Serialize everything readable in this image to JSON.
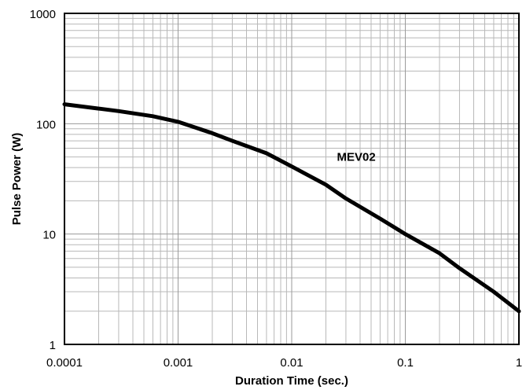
{
  "chart_data": {
    "type": "line",
    "title": "",
    "xlabel": "Duration Time (sec.)",
    "ylabel": "Pulse Power (W)",
    "x_scale": "log",
    "y_scale": "log",
    "xlim": [
      0.0001,
      1
    ],
    "ylim": [
      1,
      1000
    ],
    "grid": true,
    "x_ticks": [
      {
        "value": 0.0001,
        "label": "0.0001"
      },
      {
        "value": 0.001,
        "label": "0.001"
      },
      {
        "value": 0.01,
        "label": "0.01"
      },
      {
        "value": 0.1,
        "label": "0.1"
      },
      {
        "value": 1,
        "label": "1"
      }
    ],
    "y_ticks": [
      {
        "value": 1,
        "label": "1"
      },
      {
        "value": 10,
        "label": "10"
      },
      {
        "value": 100,
        "label": "100"
      },
      {
        "value": 1000,
        "label": "1000"
      }
    ],
    "series": [
      {
        "name": "MEV02",
        "x": [
          0.0001,
          0.0002,
          0.0003,
          0.0006,
          0.001,
          0.002,
          0.003,
          0.006,
          0.01,
          0.02,
          0.03,
          0.06,
          0.1,
          0.2,
          0.3,
          0.6,
          1
        ],
        "y": [
          150,
          137,
          130,
          117,
          104,
          82,
          70,
          54,
          41,
          28,
          21,
          13.8,
          10,
          6.7,
          4.9,
          3.0,
          2.0
        ]
      }
    ],
    "annotations": [
      {
        "text": "MEV02",
        "x": 0.025,
        "y": 46
      }
    ],
    "colors": {
      "line": "#000000",
      "grid": "#9a9a9a",
      "background": "#ffffff"
    }
  }
}
